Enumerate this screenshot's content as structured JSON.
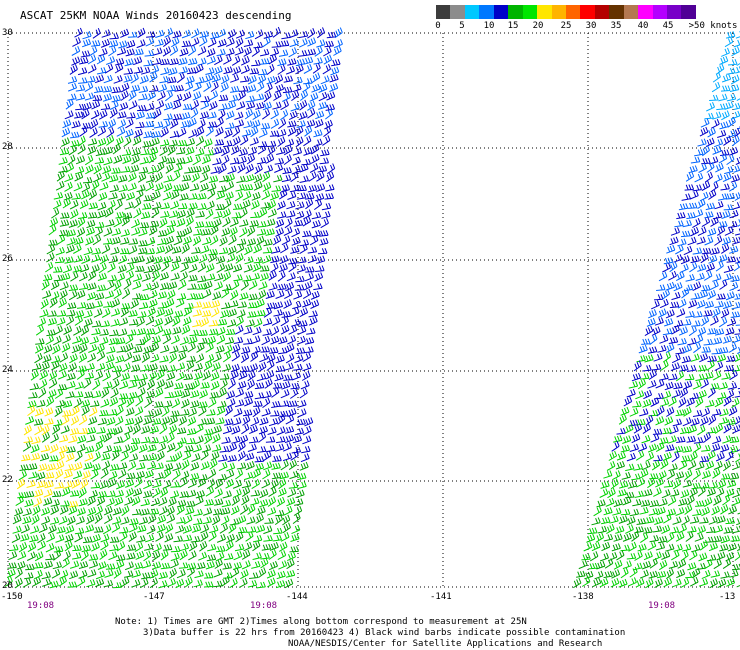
{
  "title": "ASCAT 25KM NOAA Winds 20160423 descending",
  "scale": {
    "colors": [
      "#3c3c3c",
      "#8c8c8c",
      "#00c8ff",
      "#0078ff",
      "#0000c8",
      "#00b400",
      "#00e600",
      "#ffe600",
      "#ffb400",
      "#ff6400",
      "#ff0000",
      "#b40000",
      "#643200",
      "#b47850",
      "#ff00ff",
      "#b400ff",
      "#7800c8",
      "#500096"
    ],
    "labels": [
      "0",
      "5",
      "10",
      "15",
      "20",
      "25",
      "30",
      "35",
      "40",
      "45",
      ">50 knots"
    ]
  },
  "axes": {
    "lat_labels": [
      "30",
      "28",
      "26",
      "24",
      "22",
      "20"
    ],
    "lon_labels": [
      "-150",
      "-147",
      "-144",
      "-141",
      "-138",
      "-13"
    ],
    "times": [
      "19:08",
      "19:08",
      "19:08"
    ]
  },
  "notes": {
    "line1": "Note: 1) Times are GMT 2)Times along bottom correspond to measurement at 25N",
    "line2": "3)Data buffer is 22 hrs from 20160423 4) Black wind barbs indicate possible contamination",
    "line3": "NOAA/NESDIS/Center for Satellite Applications and Research"
  },
  "barb_colors": {
    "dark_blue": "#0000c8",
    "blue": "#0064ff",
    "light_blue": "#00aaff",
    "dark_green": "#00a000",
    "green": "#00d200",
    "yellow": "#ffe600"
  }
}
